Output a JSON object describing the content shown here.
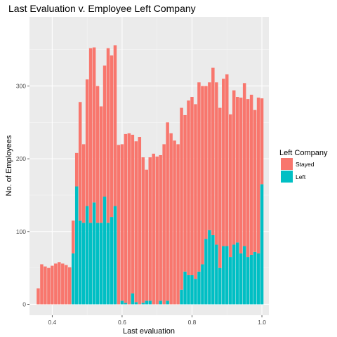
{
  "chart_data": {
    "type": "bar",
    "stacked": true,
    "title": "Last Evaluation v. Employee Left Company",
    "xlabel": "Last evaluation",
    "ylabel": "No. of Employees",
    "xlim": [
      0.335,
      1.02
    ],
    "ylim": [
      -15,
      395
    ],
    "xticks": [
      0.4,
      0.6,
      0.8,
      1.0
    ],
    "xtick_labels": [
      "0.4",
      "0.6",
      "0.8",
      "1.0"
    ],
    "yticks": [
      0,
      100,
      200,
      300
    ],
    "ytick_labels": [
      "0",
      "100",
      "200",
      "300"
    ],
    "grid": true,
    "legend_position": "right",
    "legend_title": "Left Company",
    "x": [
      0.36,
      0.37,
      0.38,
      0.39,
      0.4,
      0.41,
      0.42,
      0.43,
      0.44,
      0.45,
      0.46,
      0.47,
      0.48,
      0.49,
      0.5,
      0.51,
      0.52,
      0.53,
      0.54,
      0.55,
      0.56,
      0.57,
      0.58,
      0.59,
      0.6,
      0.61,
      0.62,
      0.63,
      0.64,
      0.65,
      0.66,
      0.67,
      0.68,
      0.69,
      0.7,
      0.71,
      0.72,
      0.73,
      0.74,
      0.75,
      0.76,
      0.77,
      0.78,
      0.79,
      0.8,
      0.81,
      0.82,
      0.83,
      0.84,
      0.85,
      0.86,
      0.87,
      0.88,
      0.89,
      0.9,
      0.91,
      0.92,
      0.93,
      0.94,
      0.95,
      0.96,
      0.97,
      0.98,
      0.99,
      1.0
    ],
    "series": [
      {
        "name": "Left",
        "color": "#00BFC4",
        "values": [
          0,
          0,
          0,
          0,
          0,
          0,
          0,
          0,
          0,
          0,
          70,
          162,
          115,
          112,
          135,
          112,
          140,
          112,
          112,
          148,
          112,
          120,
          135,
          0,
          5,
          2,
          0,
          15,
          3,
          0,
          2,
          5,
          5,
          0,
          0,
          5,
          0,
          5,
          0,
          0,
          0,
          20,
          45,
          40,
          40,
          35,
          45,
          55,
          90,
          102,
          95,
          82,
          50,
          80,
          80,
          65,
          82,
          85,
          70,
          80,
          65,
          68,
          72,
          70,
          165
        ]
      },
      {
        "name": "Stayed",
        "color": "#F8766D",
        "values": [
          22,
          55,
          52,
          50,
          53,
          56,
          58,
          56,
          54,
          51,
          45,
          46,
          163,
          108,
          174,
          240,
          213,
          188,
          160,
          180,
          240,
          222,
          221,
          219,
          215,
          232,
          235,
          218,
          221,
          230,
          200,
          180,
          197,
          207,
          203,
          200,
          220,
          245,
          235,
          225,
          220,
          250,
          215,
          240,
          245,
          240,
          260,
          245,
          210,
          203,
          230,
          223,
          220,
          230,
          236,
          196,
          212,
          200,
          214,
          224,
          217,
          220,
          195,
          214,
          118
        ]
      }
    ]
  }
}
